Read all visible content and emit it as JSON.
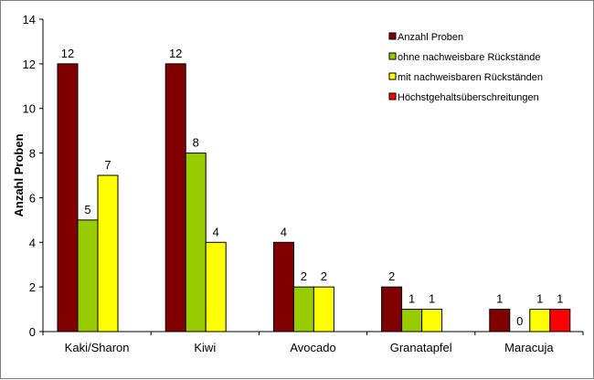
{
  "chart_data": {
    "type": "bar",
    "title": "",
    "xlabel": "",
    "ylabel": "Anzahl Proben",
    "ylim": [
      0,
      14
    ],
    "yticks": [
      0,
      2,
      4,
      6,
      8,
      10,
      12,
      14
    ],
    "grid": false,
    "legend_position": "top-right",
    "categories": [
      "Kaki/Sharon",
      "Kiwi",
      "Avocado",
      "Granatapfel",
      "Maracuja"
    ],
    "series": [
      {
        "name": "Anzahl Proben",
        "color": "#800000",
        "values": [
          12,
          12,
          4,
          2,
          1
        ]
      },
      {
        "name": "ohne nachweisbare Rückstände",
        "color": "#99CC00",
        "values": [
          5,
          8,
          2,
          1,
          0
        ]
      },
      {
        "name": "mit nachweisbaren Rückständen",
        "color": "#FFFF00",
        "values": [
          7,
          4,
          2,
          1,
          1
        ]
      },
      {
        "name": "Höchstgehaltsüberschreitungen",
        "color": "#FF0000",
        "values": [
          null,
          null,
          null,
          null,
          1
        ]
      }
    ]
  }
}
